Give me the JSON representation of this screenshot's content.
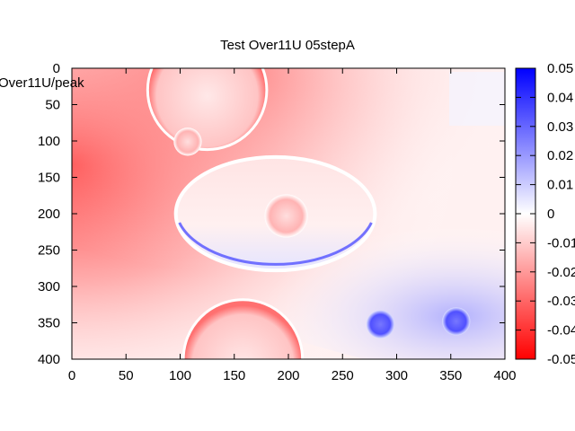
{
  "chart_data": {
    "type": "heatmap",
    "title": "Test Over11U 05stepA",
    "ylabel": "Over11U/peak",
    "xlabel": "",
    "x_ticks": [
      0,
      50,
      100,
      150,
      200,
      250,
      300,
      350,
      400
    ],
    "y_ticks": [
      0,
      50,
      100,
      150,
      200,
      250,
      300,
      350,
      400
    ],
    "xlim": [
      0,
      400
    ],
    "ylim": [
      0,
      400
    ],
    "y_axis_inverted": true,
    "colorbar": {
      "min": -0.05,
      "max": 0.05,
      "ticks": [
        "0.05",
        "0.04",
        "0.03",
        "0.02",
        "0.01",
        "0",
        "-0.01",
        "-0.02",
        "-0.03",
        "-0.04",
        "-0.05"
      ],
      "colors": {
        "low": "#ff0000",
        "mid": "#ffffff",
        "high": "#0000ff"
      }
    },
    "features": [
      {
        "shape": "ellipse",
        "cx": 188,
        "cy": 200,
        "rx": 92,
        "ry": 78,
        "value": -0.005,
        "edge": "lower-edge blue rim"
      },
      {
        "shape": "circle",
        "cx": 125,
        "cy": 30,
        "r": 55,
        "value": -0.02
      },
      {
        "shape": "circle",
        "cx": 158,
        "cy": 400,
        "r": 55,
        "value": -0.03
      },
      {
        "shape": "circle",
        "cx": 107,
        "cy": 101,
        "r": 13,
        "value": -0.025
      },
      {
        "shape": "circle",
        "cx": 198,
        "cy": 203,
        "r": 20,
        "value": -0.015
      },
      {
        "shape": "circle",
        "cx": 285,
        "cy": 352,
        "r": 13,
        "value": 0.04
      },
      {
        "shape": "circle",
        "cx": 355,
        "cy": 348,
        "r": 13,
        "value": 0.04
      }
    ],
    "grid": false,
    "legend": "colorbar-right"
  }
}
